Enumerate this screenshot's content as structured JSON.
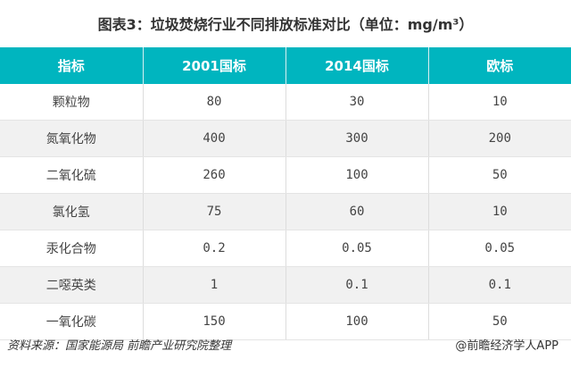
{
  "chart_data": {
    "type": "table",
    "title": "图表3：垃圾焚烧行业不同排放标准对比（单位：mg/m³）",
    "columns": [
      "指标",
      "2001国标",
      "2014国标",
      "欧标"
    ],
    "rows": [
      [
        "颗粒物",
        "80",
        "30",
        "10"
      ],
      [
        "氮氧化物",
        "400",
        "300",
        "200"
      ],
      [
        "二氧化硫",
        "260",
        "100",
        "50"
      ],
      [
        "氯化氢",
        "75",
        "60",
        "10"
      ],
      [
        "汞化合物",
        "0.2",
        "0.05",
        "0.05"
      ],
      [
        "二噁英类",
        "1",
        "0.1",
        "0.1"
      ],
      [
        "一氧化碳",
        "150",
        "100",
        "50"
      ]
    ]
  },
  "footer": {
    "source": "资料来源：国家能源局  前瞻产业研究院整理",
    "credit": "@前瞻经济学人APP"
  },
  "colors": {
    "header": "#00b5bf",
    "alt_row": "#f1f1f1"
  }
}
